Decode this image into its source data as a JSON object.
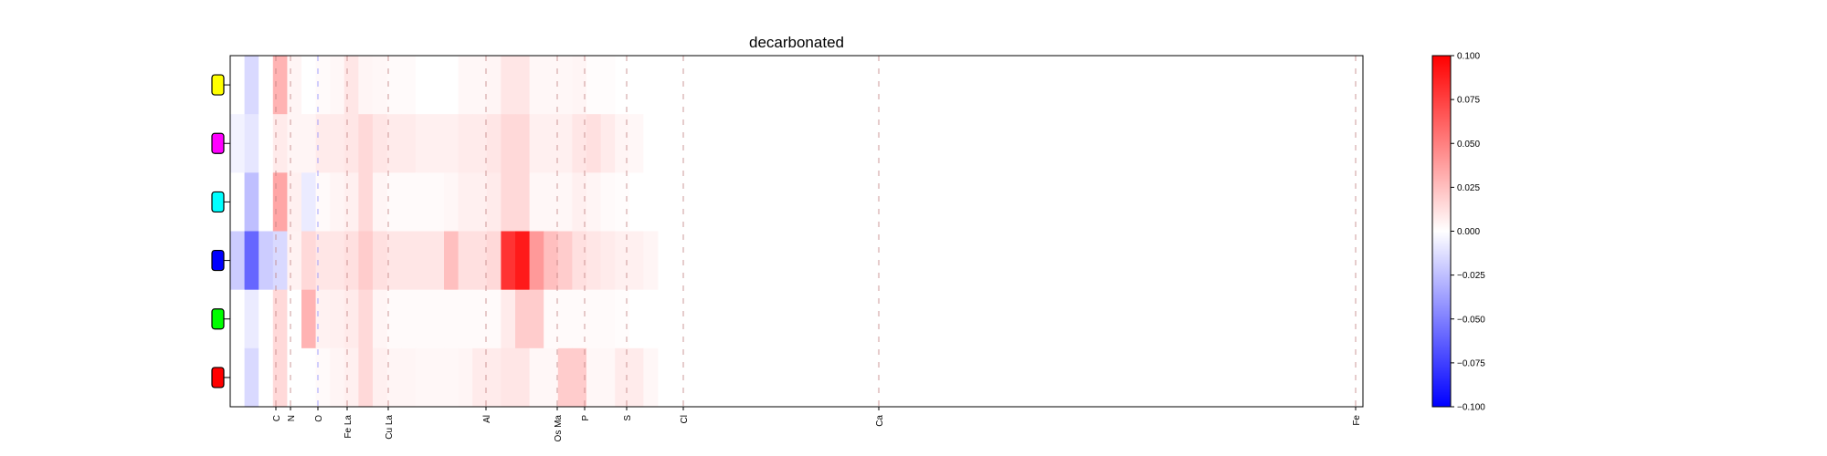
{
  "chart_data": {
    "type": "heatmap",
    "title": "decarbonated",
    "xlabel": "",
    "ylabel": "",
    "x_tick_labels": [
      "C",
      "N",
      "O",
      "Fe La",
      "Cu La",
      "Al",
      "Os Ma",
      "P",
      "S",
      "Cl",
      "Ca",
      "Fe"
    ],
    "rows": [
      {
        "marker_color": "#ffff00"
      },
      {
        "marker_color": "#ff00ff"
      },
      {
        "marker_color": "#00ffff"
      },
      {
        "marker_color": "#0000ff"
      },
      {
        "marker_color": "#00ff00"
      },
      {
        "marker_color": "#ff0000"
      }
    ],
    "colormap": [
      "#0000ff",
      "#ffffff",
      "#ff0000"
    ],
    "colorbar": {
      "range": [
        -0.1,
        0.1
      ],
      "ticks": [
        "0.100",
        "0.075",
        "0.050",
        "0.025",
        "0.000",
        "−0.025",
        "−0.050",
        "−0.075",
        "−0.100"
      ]
    },
    "values": [
      [
        0.0,
        -0.015,
        0.0,
        0.03,
        0.004,
        0.0,
        0.002,
        0.003,
        0.01,
        0.004,
        0.003,
        0.002,
        0.002,
        0.0,
        0.0,
        0.0,
        0.003,
        0.003,
        0.004,
        0.01,
        0.01,
        0.003,
        0.003,
        0.003,
        0.004,
        0.001,
        0.001,
        0.0,
        0.0,
        0.0
      ],
      [
        -0.005,
        -0.01,
        0.0,
        0.008,
        0.004,
        0.004,
        0.008,
        0.008,
        0.01,
        0.015,
        0.01,
        0.008,
        0.008,
        0.006,
        0.006,
        0.006,
        0.008,
        0.008,
        0.01,
        0.015,
        0.015,
        0.006,
        0.006,
        0.006,
        0.01,
        0.012,
        0.008,
        0.004,
        0.003,
        0.0
      ],
      [
        0.0,
        -0.025,
        0.0,
        0.035,
        0.006,
        -0.008,
        0.002,
        0.004,
        0.006,
        0.015,
        0.004,
        0.002,
        0.002,
        0.002,
        0.002,
        0.003,
        0.006,
        0.006,
        0.008,
        0.015,
        0.015,
        0.003,
        0.003,
        0.003,
        0.006,
        0.004,
        0.002,
        0.001,
        0.0,
        0.0
      ],
      [
        -0.02,
        -0.06,
        -0.02,
        -0.015,
        0.005,
        0.015,
        0.01,
        0.01,
        0.012,
        0.02,
        0.012,
        0.01,
        0.01,
        0.01,
        0.01,
        0.025,
        0.012,
        0.012,
        0.015,
        0.08,
        0.09,
        0.04,
        0.025,
        0.02,
        0.012,
        0.01,
        0.008,
        0.006,
        0.006,
        0.004
      ],
      [
        0.0,
        -0.008,
        0.0,
        0.015,
        0.0,
        0.03,
        0.005,
        0.006,
        0.008,
        0.015,
        0.004,
        0.002,
        0.002,
        0.002,
        0.002,
        0.002,
        0.002,
        0.002,
        0.002,
        0.008,
        0.02,
        0.02,
        0.002,
        0.002,
        0.002,
        0.002,
        0.002,
        0.001,
        0.0,
        0.0
      ],
      [
        0.0,
        -0.015,
        0.0,
        0.015,
        0.0,
        0.0,
        0.002,
        0.004,
        0.006,
        0.015,
        0.006,
        0.004,
        0.004,
        0.003,
        0.003,
        0.003,
        0.004,
        0.008,
        0.008,
        0.01,
        0.01,
        0.003,
        0.003,
        0.02,
        0.02,
        0.003,
        0.003,
        0.008,
        0.008,
        0.003
      ]
    ]
  }
}
